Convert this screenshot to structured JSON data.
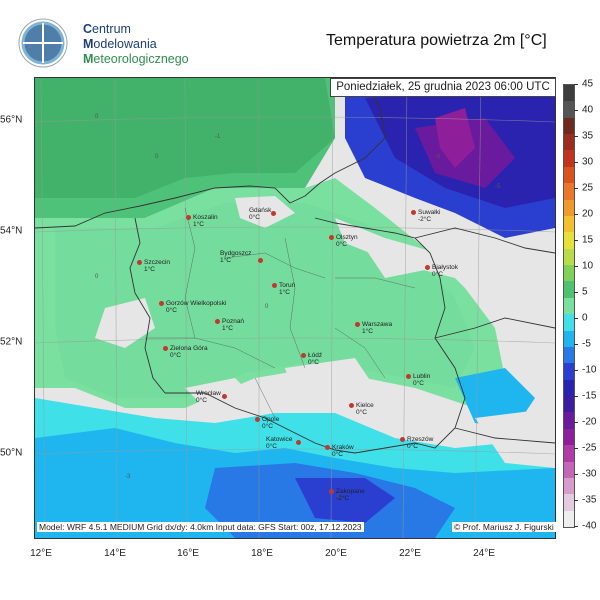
{
  "header": {
    "org_lines": [
      {
        "cap": "C",
        "rest": "entrum"
      },
      {
        "cap": "M",
        "rest": "odelowania"
      },
      {
        "cap": "M",
        "rest": "eteorologicznego"
      }
    ],
    "logo_text_top": "IM",
    "logo_text_bottom": "GW",
    "title": "Temperatura powietrza 2m [°C]"
  },
  "map": {
    "date_label": "Poniedziałek, 25 grudnia 2023 06:00 UTC",
    "footer_left": "Model: WRF 4.5.1 MEDIUM   Grid dx/dy: 4.0km   Input data: GFS   Start: 00z, 17.12.2023",
    "footer_right": "© Prof. Mariusz J. Figurski",
    "lon_labels": [
      "12°E",
      "14°E",
      "16°E",
      "18°E",
      "20°E",
      "22°E",
      "24°E"
    ],
    "lat_labels": [
      "56°N",
      "54°N",
      "52°N",
      "50°N"
    ],
    "cities": [
      {
        "name": "Koszalin",
        "temp": "1°C"
      },
      {
        "name": "Gdańsk",
        "temp": "0°C"
      },
      {
        "name": "Suwałki",
        "temp": "-2°C"
      },
      {
        "name": "Olsztyn",
        "temp": "0°C"
      },
      {
        "name": "Szczecin",
        "temp": "1°C"
      },
      {
        "name": "Bydgoszcz",
        "temp": "1°C"
      },
      {
        "name": "Toruń",
        "temp": "1°C"
      },
      {
        "name": "Białystok",
        "temp": "0°C"
      },
      {
        "name": "Gorzów Wielkopolski",
        "temp": "0°C"
      },
      {
        "name": "Poznań",
        "temp": "1°C"
      },
      {
        "name": "Warszawa",
        "temp": "1°C"
      },
      {
        "name": "Zielona Góra",
        "temp": "0°C"
      },
      {
        "name": "Łódź",
        "temp": "0°C"
      },
      {
        "name": "Lublin",
        "temp": "0°C"
      },
      {
        "name": "Wrocław",
        "temp": "0°C"
      },
      {
        "name": "Kielce",
        "temp": "0°C"
      },
      {
        "name": "Opole",
        "temp": "0°C"
      },
      {
        "name": "Katowice",
        "temp": "0°C"
      },
      {
        "name": "Rzeszów",
        "temp": "0°C"
      },
      {
        "name": "Kraków",
        "temp": "0°C"
      },
      {
        "name": "Zakopane",
        "temp": "-2°C"
      }
    ]
  },
  "colorbar": {
    "ticks": [
      "45",
      "40",
      "35",
      "30",
      "25",
      "20",
      "15",
      "10",
      "5",
      "0",
      "-5",
      "-10",
      "-15",
      "-20",
      "-25",
      "-30",
      "-35",
      "-40"
    ],
    "colors": [
      "#3d3d3d",
      "#555555",
      "#6e2a1f",
      "#9b2d1f",
      "#c1351f",
      "#d9531e",
      "#e8772a",
      "#f09a2d",
      "#f5c030",
      "#e6e13a",
      "#b8dc4a",
      "#7fd15a",
      "#4fc271",
      "#7ae0a0",
      "#40e0e8",
      "#1fb6f0",
      "#2878e6",
      "#2a3fd0",
      "#2a23b0",
      "#3c1ca0",
      "#6a1a9c",
      "#8e1e9a",
      "#b03aa8",
      "#c466b8",
      "#d69ccb",
      "#e4cbe0",
      "#eeeeee"
    ]
  }
}
